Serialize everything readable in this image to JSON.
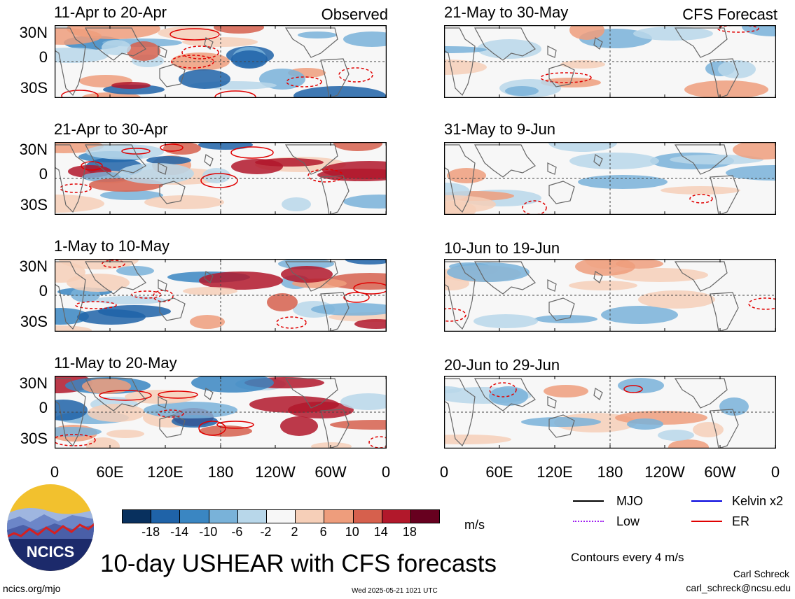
{
  "panels": {
    "left": [
      {
        "title": "11-Apr to 20-Apr",
        "tag": "Observed"
      },
      {
        "title": "21-Apr to 30-Apr",
        "tag": ""
      },
      {
        "title": "1-May to 10-May",
        "tag": ""
      },
      {
        "title": "11-May to 20-May",
        "tag": ""
      }
    ],
    "right": [
      {
        "title": "21-May to 30-May",
        "tag": "CFS Forecast"
      },
      {
        "title": "31-May to 9-Jun",
        "tag": ""
      },
      {
        "title": "10-Jun to 19-Jun",
        "tag": ""
      },
      {
        "title": "20-Jun to 29-Jun",
        "tag": ""
      }
    ]
  },
  "lat_labels": [
    "30N",
    "0",
    "30S"
  ],
  "lon_labels": [
    "0",
    "60E",
    "120E",
    "180",
    "120W",
    "60W",
    "0"
  ],
  "colorbar": {
    "labels": [
      "-18",
      "-14",
      "-10",
      "-6",
      "-2",
      "2",
      "6",
      "10",
      "14",
      "18"
    ],
    "colors": [
      "#08305e",
      "#1f63a8",
      "#3a86c2",
      "#79b2d9",
      "#b8d7ea",
      "#f7f7f7",
      "#f6cfb8",
      "#ee9d7c",
      "#d6604d",
      "#b2182b",
      "#67001f"
    ],
    "unit": "m/s"
  },
  "legend": {
    "items": [
      {
        "label": "MJO",
        "color": "#000000",
        "style": "solid"
      },
      {
        "label": "Kelvin x2",
        "color": "#0000dd",
        "style": "solid"
      },
      {
        "label": "Low",
        "color": "#a020f0",
        "style": "dotted"
      },
      {
        "label": "ER",
        "color": "#e00000",
        "style": "solid"
      }
    ],
    "contour_note": "Contours every 4 m/s"
  },
  "main_title": "10-day USHEAR with CFS forecasts",
  "logo_text": "NCICS",
  "footer": {
    "site": "ncics.org/mjo",
    "timestamp": "Wed 2025-05-21 1021 UTC",
    "author": "Carl Schreck",
    "email": "carl_schreck@ncsu.edu"
  }
}
